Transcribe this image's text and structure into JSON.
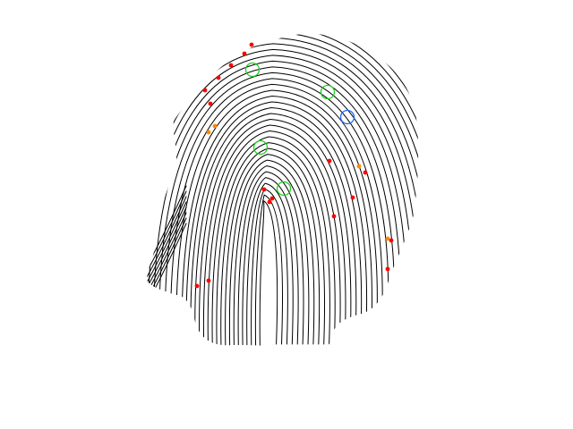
{
  "figure": {
    "subject": "fingerprint-ridge-skeleton",
    "colors": {
      "background": "#ffffff",
      "ridge": "#000000",
      "minutia_ending": "#ff0000",
      "minutia_bifurcation": "#ff8800",
      "core": "#22cc22",
      "delta": "#1a66ff"
    },
    "legend": [],
    "marker_types": [
      "minutia-ending-dot",
      "minutia-bifurcation-dot",
      "core-circle",
      "delta-circle"
    ]
  }
}
